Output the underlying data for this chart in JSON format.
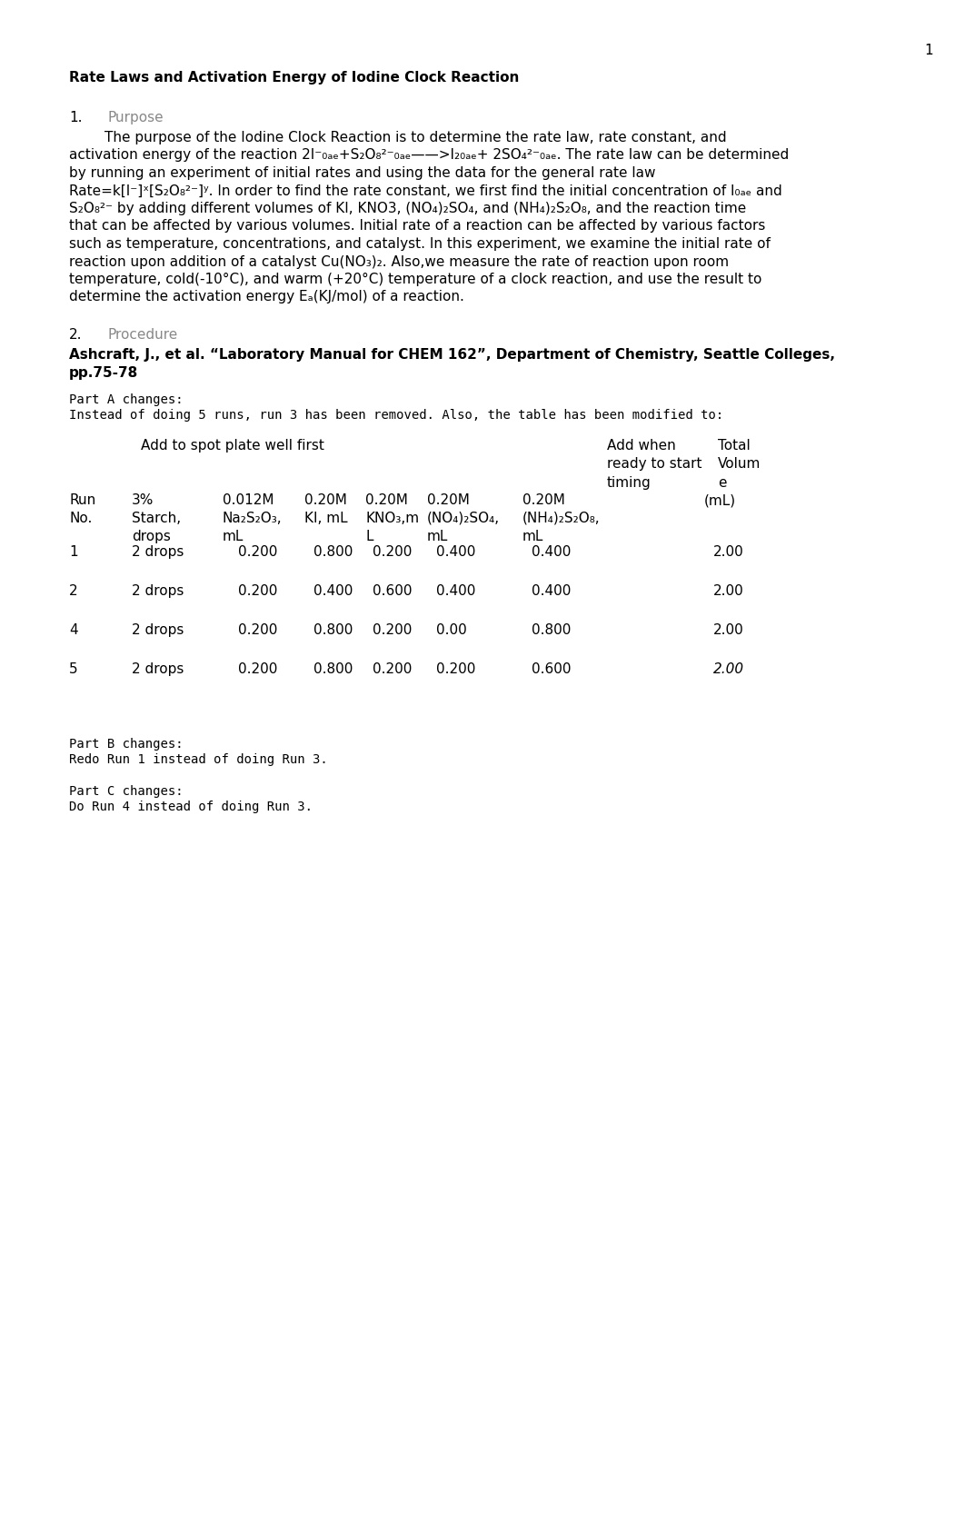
{
  "page_number": "1",
  "title": "Rate Laws and Activation Energy of Iodine Clock Reaction",
  "section1_number": "1.",
  "section1_heading": "Purpose",
  "section2_number": "2.",
  "section2_heading": "Procedure",
  "section2_ref_line1": "Ashcraft, J., et al. “Laboratory Manual for CHEM 162”, Department of Chemistry, Seattle Colleges,",
  "section2_ref_line2": "pp.75-78",
  "part_a_label": "Part A changes:",
  "part_a_text": "Instead of doing 5 runs, run 3 has been removed. Also, the table has been modified to:",
  "table_header1a": "Add to spot plate well first",
  "table_header1b": "Add when\nready to start\ntiming",
  "table_header1c": "Total\nVolum\ne",
  "col_header_run": "Run\nNo.",
  "col_header_starch": "3%\nStarch,\ndrops",
  "col_header_na2s2o3": "0.012M\nNa₂S₂O₃,\nmL",
  "col_header_ki": "0.20M\nKI, mL",
  "col_header_kno3": "0.20M\nKNO₃,m\nL",
  "col_header_no4so4": "0.20M\n(NO₄)₂SO₄,\nmL",
  "col_header_nh4s2o8": "0.20M\n(NH₄)₂S₂O₈,\nmL",
  "col_header_total": "(mL)",
  "rows": [
    [
      "1",
      "2 drops",
      "0.200",
      "0.800",
      "0.200",
      "0.400",
      "0.400",
      "2.00"
    ],
    [
      "2",
      "2 drops",
      "0.200",
      "0.400",
      "0.600",
      "0.400",
      "0.400",
      "2.00"
    ],
    [
      "4",
      "2 drops",
      "0.200",
      "0.800",
      "0.200",
      "0.00",
      "0.800",
      "2.00"
    ],
    [
      "5",
      "2 drops",
      "0.200",
      "0.800",
      "0.200",
      "0.200",
      "0.600",
      "2.00"
    ]
  ],
  "part_b_label": "Part B changes:",
  "part_b_text": "Redo Run 1 instead of doing Run 3.",
  "part_c_label": "Part C changes:",
  "part_c_text": "Do Run 4 instead of doing Run 3.",
  "bg_color": "#ffffff",
  "text_color": "#000000",
  "gray_color": "#888888"
}
